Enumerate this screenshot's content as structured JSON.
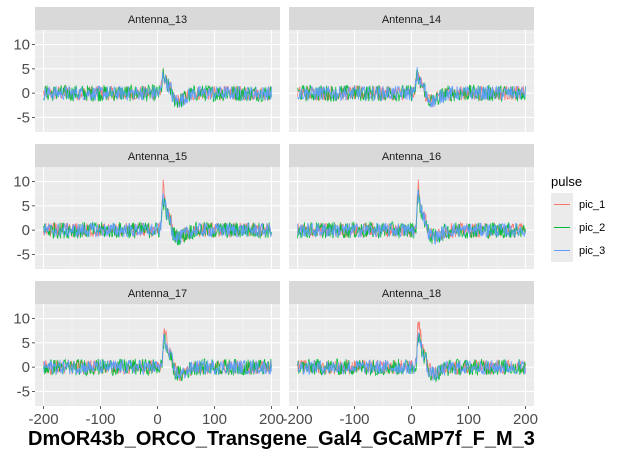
{
  "chart_data": {
    "type": "line",
    "facets": [
      "Antenna_13",
      "Antenna_14",
      "Antenna_15",
      "Antenna_16",
      "Antenna_17",
      "Antenna_18"
    ],
    "xlabel": "DmOR43b_ORCO_Transgene_Gal4_GCaMP7f_F_M_3",
    "ylabel": "",
    "xlim": [
      -215,
      215
    ],
    "ylim": [
      -8,
      13
    ],
    "x_ticks": [
      -200,
      -100,
      0,
      100,
      200
    ],
    "y_ticks": [
      -5,
      0,
      5,
      10
    ],
    "x_tick_labels": [
      "-200",
      "-100",
      "0",
      "100",
      "200"
    ],
    "y_tick_labels": [
      "-5",
      "0",
      "5",
      "10"
    ],
    "x_range": [
      -200,
      200
    ],
    "grid": true,
    "legend": {
      "title": "pulse",
      "position": "right",
      "entries": [
        "pic_1",
        "pic_2",
        "pic_3"
      ]
    },
    "series": [
      {
        "name": "pic_1",
        "color": "#F8766D"
      },
      {
        "name": "pic_2",
        "color": "#00BA38"
      },
      {
        "name": "pic_3",
        "color": "#619CFF"
      }
    ],
    "response_peaks": [
      {
        "facet": "Antenna_13",
        "peak_x": 10,
        "values": [
          4,
          3.5,
          4
        ]
      },
      {
        "facet": "Antenna_14",
        "peak_x": 10,
        "values": [
          4,
          3.5,
          4
        ]
      },
      {
        "facet": "Antenna_15",
        "peak_x": 10,
        "values": [
          9,
          6.5,
          7.5
        ]
      },
      {
        "facet": "Antenna_16",
        "peak_x": 12,
        "values": [
          9.5,
          7,
          8
        ]
      },
      {
        "facet": "Antenna_17",
        "peak_x": 12,
        "values": [
          8.5,
          6,
          6.5
        ]
      },
      {
        "facet": "Antenna_18",
        "peak_x": 12,
        "values": [
          10,
          7,
          7
        ]
      }
    ],
    "baseline_noise": 1.5
  }
}
